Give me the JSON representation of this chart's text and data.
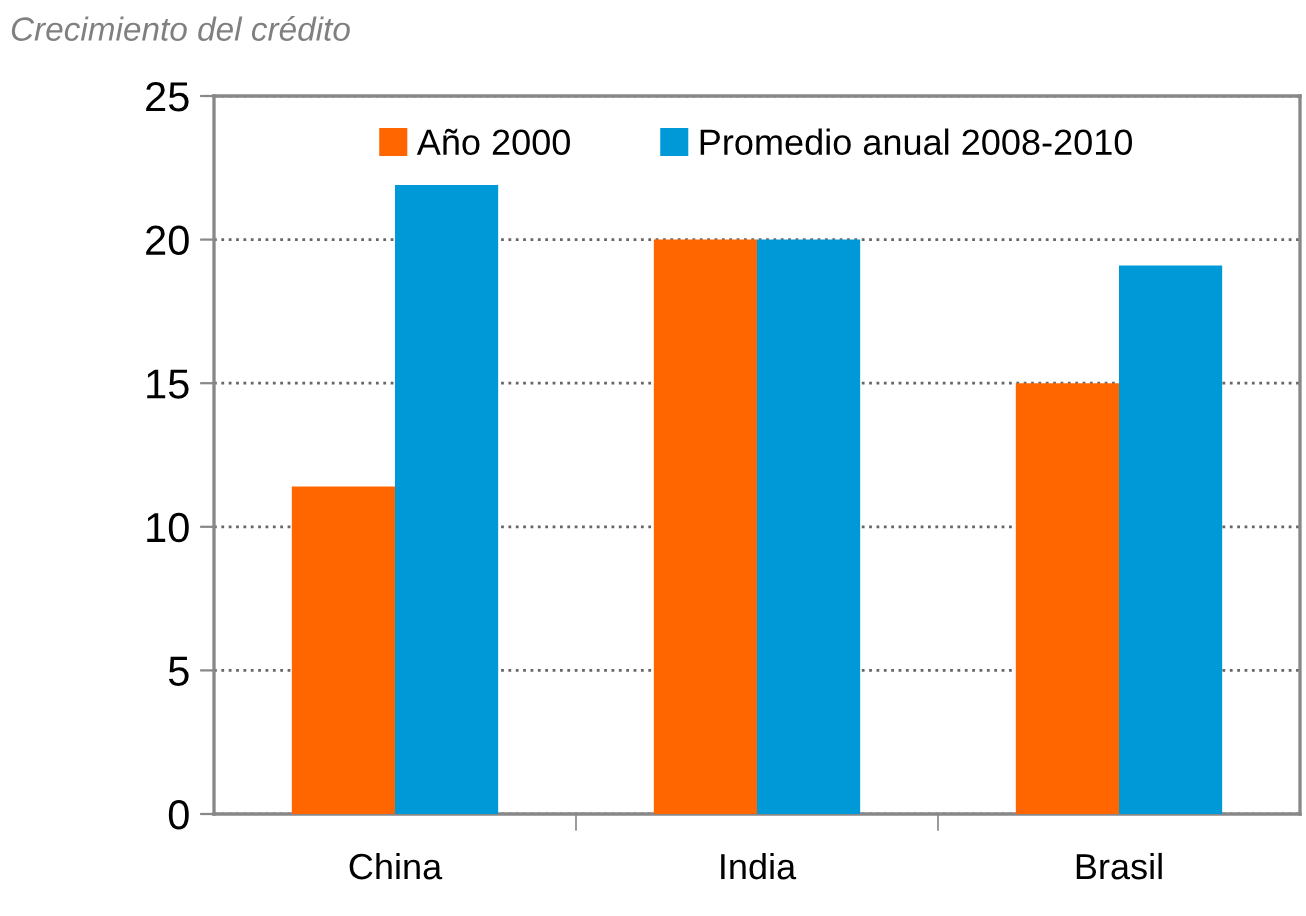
{
  "chart_data": {
    "type": "bar",
    "title": "Crecimiento del crédito",
    "categories": [
      "China",
      "India",
      "Brasil"
    ],
    "series": [
      {
        "name": "Año 2000",
        "color": "#ff6600",
        "values": [
          11.4,
          20,
          15
        ]
      },
      {
        "name": "Promedio anual 2008-2010",
        "color": "#0099d8",
        "values": [
          21.9,
          20,
          19.1
        ]
      }
    ],
    "ylim": [
      0,
      25
    ],
    "yticks": [
      0,
      5,
      10,
      15,
      20,
      25
    ],
    "grid": "y",
    "legend": "top"
  }
}
